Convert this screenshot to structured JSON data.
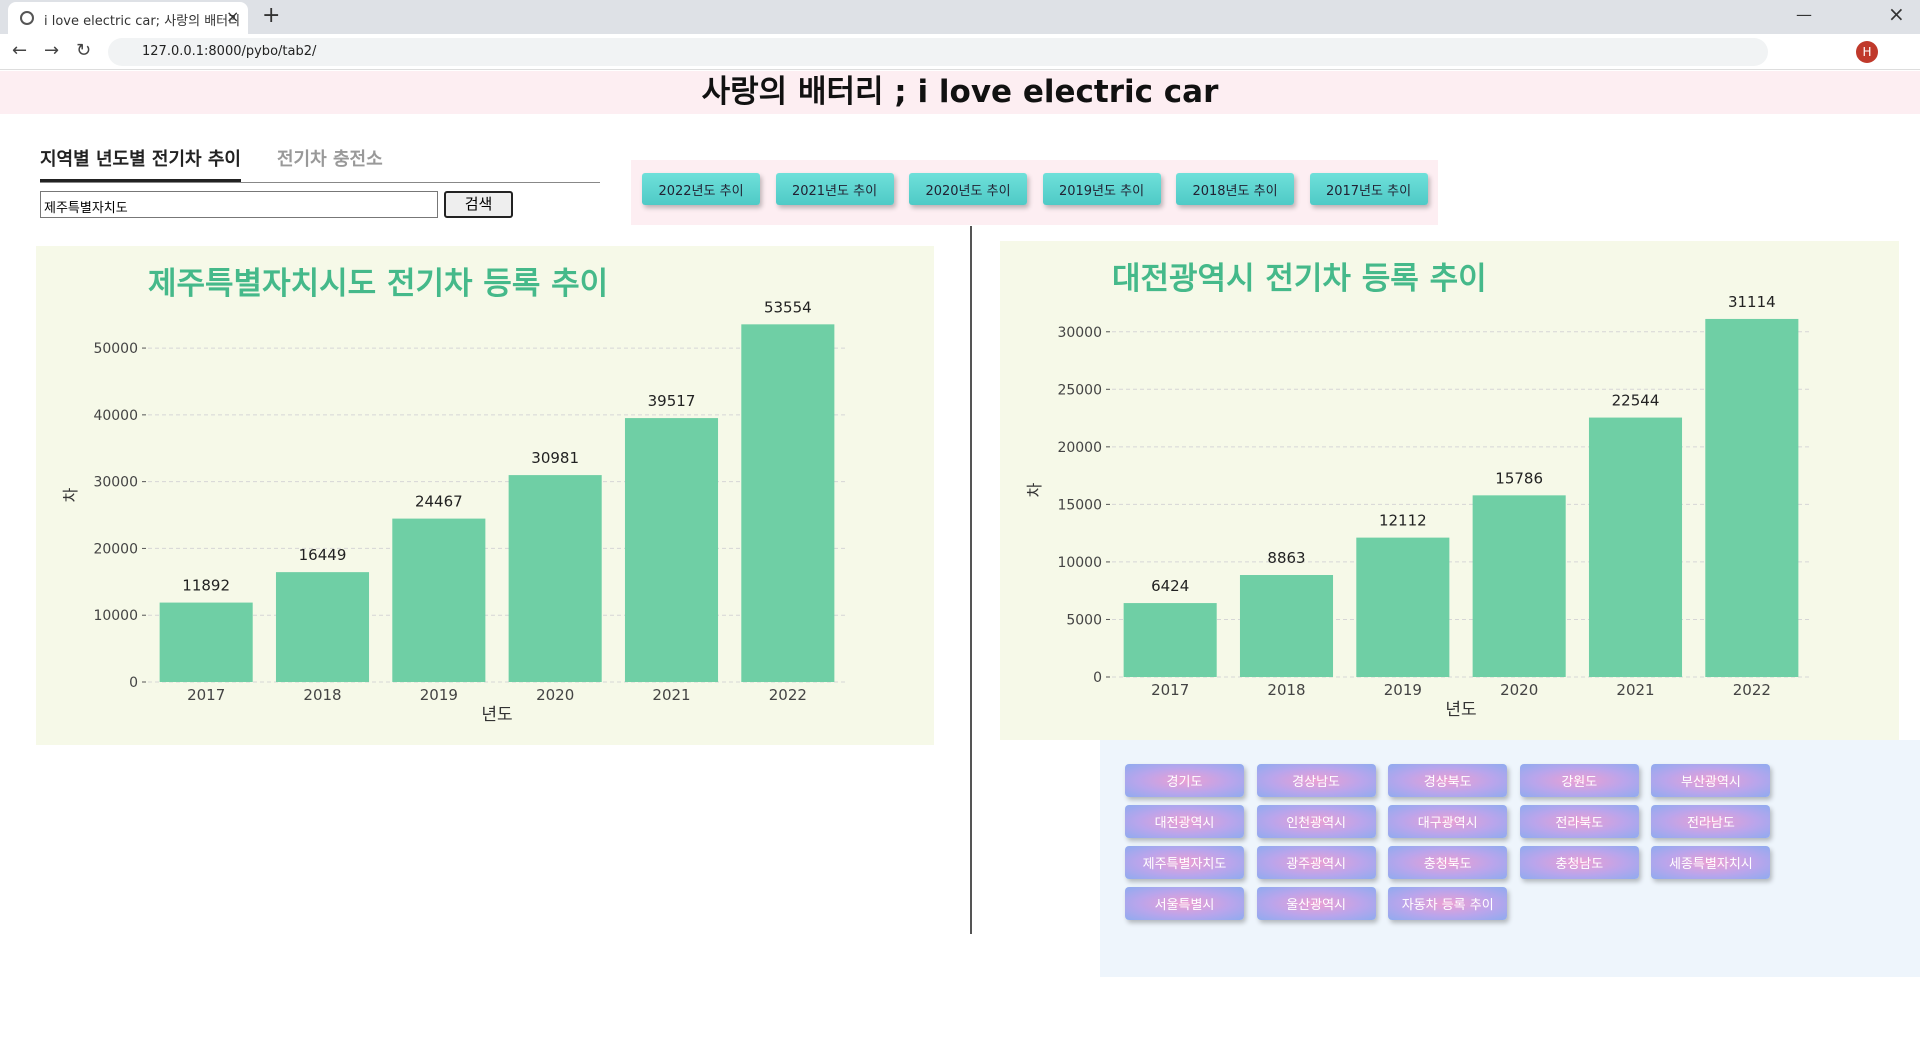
{
  "browser": {
    "tab_title": "i love electric car; 사랑의 배터리",
    "url": "127.0.0.1:8000/pybo/tab2/",
    "profile": "H"
  },
  "header": {
    "title": "사랑의 배터리 ; i love electric car"
  },
  "tabs": [
    "지역별 년도별 전기차 추이",
    "전기차 충전소"
  ],
  "search": {
    "value": "제주특별자치도",
    "button": "검색"
  },
  "year_buttons": [
    "2022년도 추이",
    "2021년도 추이",
    "2020년도 추이",
    "2019년도 추이",
    "2018년도 추이",
    "2017년도 추이"
  ],
  "region_buttons": [
    "경기도",
    "경상남도",
    "경상북도",
    "강원도",
    "부산광역시",
    "대전광역시",
    "인천광역시",
    "대구광역시",
    "전라북도",
    "전라남도",
    "제주특별자치도",
    "광주광역시",
    "충청북도",
    "충청남도",
    "세종특별자치시",
    "서울특별시",
    "울산광역시",
    "자동차 등록 추이"
  ],
  "chart_data": [
    {
      "type": "bar",
      "title": "제주특별자치시도 전기차 등록 추이",
      "categories": [
        "2017",
        "2018",
        "2019",
        "2020",
        "2021",
        "2022"
      ],
      "values": [
        11892,
        16449,
        24467,
        30981,
        39517,
        53554
      ],
      "color": "#6fcfa5",
      "xlabel": "년도",
      "ylabel": "차",
      "ylim": [
        0,
        56000
      ],
      "yticks": [
        0,
        10000,
        20000,
        30000,
        40000,
        50000
      ],
      "grid": true
    },
    {
      "type": "bar",
      "title": "대전광역시 전기차 등록 추이",
      "categories": [
        "2017",
        "2018",
        "2019",
        "2020",
        "2021",
        "2022"
      ],
      "values": [
        6424,
        8863,
        12112,
        15786,
        22544,
        31114
      ],
      "color": "#6fcfa5",
      "xlabel": "년도",
      "ylabel": "차",
      "ylim": [
        0,
        32500
      ],
      "yticks": [
        0,
        5000,
        10000,
        15000,
        20000,
        25000,
        30000
      ],
      "grid": true
    }
  ]
}
